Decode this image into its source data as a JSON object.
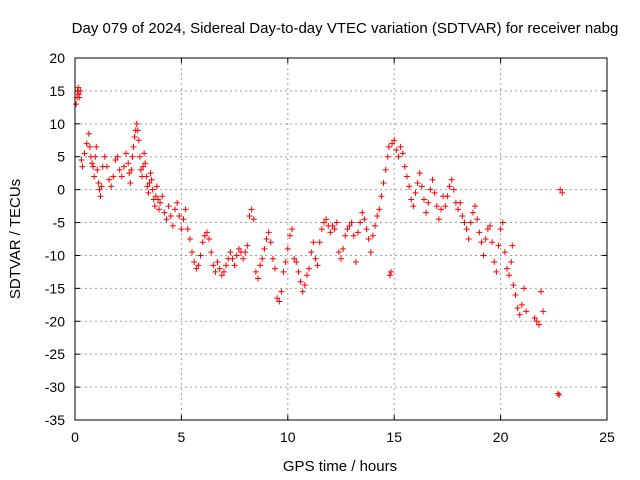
{
  "chart_data": {
    "type": "scatter",
    "title": "Day 079 of 2024, Sidereal Day-to-day VTEC variation (SDTVAR) for receiver nabg",
    "xlabel": "GPS time / hours",
    "ylabel": "SDTVAR / TECUs",
    "xlim": [
      0,
      25
    ],
    "ylim": [
      -35,
      20
    ],
    "xticks": [
      "0",
      "5",
      "10",
      "15",
      "20",
      "25"
    ],
    "yticks": [
      "20",
      "15",
      "10",
      "5",
      "0",
      "-5",
      "-10",
      "-15",
      "-20",
      "-25",
      "-30",
      "-35"
    ],
    "grid": true,
    "marker": "+",
    "color": "#ff0000",
    "series": [
      {
        "name": "SDTVAR",
        "points": [
          [
            0.05,
            13.0
          ],
          [
            0.1,
            14.0
          ],
          [
            0.12,
            15.0
          ],
          [
            0.15,
            15.5
          ],
          [
            0.18,
            14.5
          ],
          [
            0.2,
            14.0
          ],
          [
            0.25,
            15.0
          ],
          [
            0.3,
            4.5
          ],
          [
            0.35,
            3.5
          ],
          [
            0.45,
            5.5
          ],
          [
            0.55,
            7.0
          ],
          [
            0.65,
            8.5
          ],
          [
            0.7,
            6.5
          ],
          [
            0.75,
            5.0
          ],
          [
            0.8,
            4.0
          ],
          [
            0.85,
            3.5
          ],
          [
            0.9,
            2.0
          ],
          [
            0.95,
            5.0
          ],
          [
            1.0,
            6.5
          ],
          [
            1.05,
            3.0
          ],
          [
            1.1,
            1.0
          ],
          [
            1.15,
            0.0
          ],
          [
            1.2,
            -1.0
          ],
          [
            1.25,
            0.5
          ],
          [
            1.3,
            3.5
          ],
          [
            1.4,
            5.0
          ],
          [
            1.5,
            3.5
          ],
          [
            1.6,
            1.5
          ],
          [
            1.7,
            0.5
          ],
          [
            1.8,
            2.0
          ],
          [
            1.9,
            4.5
          ],
          [
            2.0,
            5.0
          ],
          [
            2.1,
            3.0
          ],
          [
            2.2,
            2.0
          ],
          [
            2.3,
            3.5
          ],
          [
            2.4,
            5.5
          ],
          [
            2.5,
            4.0
          ],
          [
            2.55,
            2.5
          ],
          [
            2.6,
            1.0
          ],
          [
            2.65,
            3.0
          ],
          [
            2.7,
            5.0
          ],
          [
            2.75,
            6.5
          ],
          [
            2.8,
            8.0
          ],
          [
            2.85,
            9.0
          ],
          [
            2.9,
            10.0
          ],
          [
            2.95,
            9.0
          ],
          [
            3.0,
            7.5
          ],
          [
            3.05,
            5.0
          ],
          [
            3.1,
            3.0
          ],
          [
            3.15,
            2.0
          ],
          [
            3.2,
            3.5
          ],
          [
            3.25,
            5.5
          ],
          [
            3.3,
            4.0
          ],
          [
            3.35,
            2.0
          ],
          [
            3.4,
            0.5
          ],
          [
            3.45,
            -0.5
          ],
          [
            3.5,
            1.0
          ],
          [
            3.55,
            2.5
          ],
          [
            3.6,
            1.5
          ],
          [
            3.65,
            0.0
          ],
          [
            3.7,
            -1.5
          ],
          [
            3.75,
            -2.5
          ],
          [
            3.8,
            -1.0
          ],
          [
            3.85,
            0.5
          ],
          [
            3.9,
            -1.5
          ],
          [
            3.95,
            -3.0
          ],
          [
            4.0,
            -2.0
          ],
          [
            4.1,
            -1.0
          ],
          [
            4.2,
            -3.5
          ],
          [
            4.3,
            -4.5
          ],
          [
            4.4,
            -2.5
          ],
          [
            4.5,
            -4.0
          ],
          [
            4.6,
            -5.5
          ],
          [
            4.7,
            -3.0
          ],
          [
            4.8,
            -2.0
          ],
          [
            4.9,
            -4.0
          ],
          [
            5.0,
            -6.0
          ],
          [
            5.1,
            -4.5
          ],
          [
            5.2,
            -3.0
          ],
          [
            5.3,
            -6.0
          ],
          [
            5.4,
            -7.5
          ],
          [
            5.5,
            -9.5
          ],
          [
            5.6,
            -11.0
          ],
          [
            5.7,
            -12.0
          ],
          [
            5.8,
            -11.5
          ],
          [
            5.9,
            -10.0
          ],
          [
            6.0,
            -8.0
          ],
          [
            6.1,
            -7.0
          ],
          [
            6.2,
            -6.5
          ],
          [
            6.3,
            -7.5
          ],
          [
            6.4,
            -9.5
          ],
          [
            6.5,
            -11.5
          ],
          [
            6.6,
            -12.5
          ],
          [
            6.7,
            -11.0
          ],
          [
            6.8,
            -12.0
          ],
          [
            6.9,
            -13.0
          ],
          [
            7.0,
            -12.5
          ],
          [
            7.1,
            -11.5
          ],
          [
            7.2,
            -10.5
          ],
          [
            7.3,
            -9.5
          ],
          [
            7.4,
            -10.5
          ],
          [
            7.5,
            -11.5
          ],
          [
            7.6,
            -10.0
          ],
          [
            7.7,
            -9.0
          ],
          [
            7.8,
            -9.5
          ],
          [
            7.9,
            -10.5
          ],
          [
            8.0,
            -9.5
          ],
          [
            8.1,
            -8.5
          ],
          [
            8.2,
            -4.0
          ],
          [
            8.3,
            -3.0
          ],
          [
            8.4,
            -4.5
          ],
          [
            8.5,
            -12.5
          ],
          [
            8.6,
            -13.5
          ],
          [
            8.7,
            -11.5
          ],
          [
            8.8,
            -10.5
          ],
          [
            8.9,
            -9.0
          ],
          [
            9.0,
            -7.5
          ],
          [
            9.1,
            -6.5
          ],
          [
            9.2,
            -8.0
          ],
          [
            9.3,
            -10.5
          ],
          [
            9.4,
            -12.0
          ],
          [
            9.5,
            -16.5
          ],
          [
            9.6,
            -17.0
          ],
          [
            9.7,
            -15.5
          ],
          [
            9.8,
            -12.5
          ],
          [
            9.9,
            -11.0
          ],
          [
            10.0,
            -9.0
          ],
          [
            10.1,
            -7.0
          ],
          [
            10.2,
            -6.0
          ],
          [
            10.3,
            -10.5
          ],
          [
            10.4,
            -11.0
          ],
          [
            10.5,
            -12.5
          ],
          [
            10.6,
            -14.0
          ],
          [
            10.7,
            -15.5
          ],
          [
            10.8,
            -14.5
          ],
          [
            10.9,
            -13.0
          ],
          [
            11.0,
            -12.0
          ],
          [
            11.1,
            -9.5
          ],
          [
            11.2,
            -8.0
          ],
          [
            11.3,
            -10.5
          ],
          [
            11.4,
            -11.5
          ],
          [
            11.5,
            -8.0
          ],
          [
            11.6,
            -6.0
          ],
          [
            11.7,
            -5.0
          ],
          [
            11.8,
            -4.5
          ],
          [
            11.9,
            -5.5
          ],
          [
            12.0,
            -6.5
          ],
          [
            12.1,
            -5.5
          ],
          [
            12.2,
            -6.0
          ],
          [
            12.3,
            -5.0
          ],
          [
            12.4,
            -9.5
          ],
          [
            12.5,
            -10.5
          ],
          [
            12.6,
            -9.0
          ],
          [
            12.7,
            -7.0
          ],
          [
            12.8,
            -6.0
          ],
          [
            12.9,
            -5.5
          ],
          [
            13.0,
            -5.0
          ],
          [
            13.1,
            -7.0
          ],
          [
            13.2,
            -11.0
          ],
          [
            13.3,
            -6.5
          ],
          [
            13.4,
            -5.0
          ],
          [
            13.5,
            -3.5
          ],
          [
            13.6,
            -4.5
          ],
          [
            13.7,
            -6.0
          ],
          [
            13.8,
            -7.5
          ],
          [
            13.9,
            -9.5
          ],
          [
            14.0,
            -7.0
          ],
          [
            14.1,
            -5.5
          ],
          [
            14.2,
            -4.0
          ],
          [
            14.3,
            -3.0
          ],
          [
            14.4,
            -1.0
          ],
          [
            14.5,
            1.0
          ],
          [
            14.6,
            3.0
          ],
          [
            14.7,
            5.0
          ],
          [
            14.75,
            6.5
          ],
          [
            14.8,
            -13.0
          ],
          [
            14.85,
            -12.5
          ],
          [
            14.9,
            7.0
          ],
          [
            15.0,
            7.5
          ],
          [
            15.1,
            6.0
          ],
          [
            15.2,
            5.0
          ],
          [
            15.3,
            6.5
          ],
          [
            15.4,
            5.5
          ],
          [
            15.5,
            3.5
          ],
          [
            15.6,
            2.0
          ],
          [
            15.7,
            0.5
          ],
          [
            15.8,
            -1.5
          ],
          [
            15.9,
            -2.5
          ],
          [
            16.0,
            -0.5
          ],
          [
            16.1,
            1.0
          ],
          [
            16.2,
            2.5
          ],
          [
            16.3,
            0.5
          ],
          [
            16.4,
            -1.5
          ],
          [
            16.5,
            -3.5
          ],
          [
            16.6,
            -2.0
          ],
          [
            16.7,
            0.0
          ],
          [
            16.8,
            1.5
          ],
          [
            16.9,
            -0.5
          ],
          [
            17.0,
            -2.5
          ],
          [
            17.1,
            -4.5
          ],
          [
            17.2,
            -3.0
          ],
          [
            17.3,
            -1.0
          ],
          [
            17.4,
            -2.5
          ],
          [
            17.5,
            -1.0
          ],
          [
            17.6,
            0.5
          ],
          [
            17.7,
            1.5
          ],
          [
            17.8,
            0.0
          ],
          [
            17.9,
            -2.0
          ],
          [
            18.0,
            -3.0
          ],
          [
            18.1,
            -2.0
          ],
          [
            18.2,
            -4.0
          ],
          [
            18.3,
            -5.0
          ],
          [
            18.4,
            -6.0
          ],
          [
            18.5,
            -7.5
          ],
          [
            18.6,
            -5.0
          ],
          [
            18.7,
            -3.5
          ],
          [
            18.8,
            -2.5
          ],
          [
            18.9,
            -4.5
          ],
          [
            19.0,
            -6.5
          ],
          [
            19.1,
            -8.0
          ],
          [
            19.2,
            -10.0
          ],
          [
            19.3,
            -7.5
          ],
          [
            19.4,
            -6.0
          ],
          [
            19.5,
            -5.5
          ],
          [
            19.6,
            -8.0
          ],
          [
            19.7,
            -11.0
          ],
          [
            19.8,
            -12.5
          ],
          [
            19.9,
            -8.5
          ],
          [
            20.0,
            -6.0
          ],
          [
            20.1,
            -5.0
          ],
          [
            20.2,
            -9.5
          ],
          [
            20.3,
            -12.0
          ],
          [
            20.4,
            -13.0
          ],
          [
            20.5,
            -11.0
          ],
          [
            20.55,
            -8.5
          ],
          [
            20.6,
            -14.5
          ],
          [
            20.7,
            -16.0
          ],
          [
            20.8,
            -18.0
          ],
          [
            20.9,
            -19.0
          ],
          [
            21.0,
            -17.5
          ],
          [
            21.1,
            -15.0
          ],
          [
            21.2,
            -18.5
          ],
          [
            21.6,
            -19.5
          ],
          [
            21.7,
            -20.0
          ],
          [
            21.8,
            -20.5
          ],
          [
            21.9,
            -15.5
          ],
          [
            22.0,
            -18.5
          ],
          [
            22.7,
            -31.0
          ],
          [
            22.75,
            -31.2
          ],
          [
            22.8,
            0.0
          ],
          [
            22.9,
            -0.5
          ]
        ]
      }
    ]
  }
}
